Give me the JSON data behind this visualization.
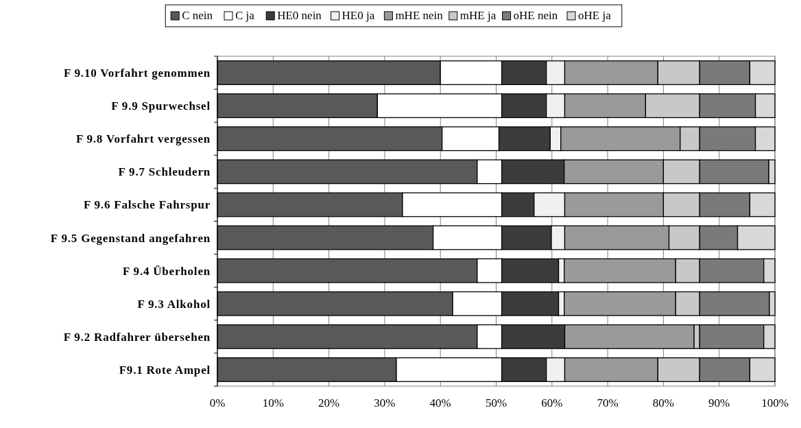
{
  "chart_data": {
    "type": "bar",
    "orientation": "horizontal",
    "stacked": true,
    "categories": [
      "F 9.10 Vorfahrt genommen",
      "F 9.9 Spurwechsel",
      "F 9.8 Vorfahrt vergessen",
      "F 9.7 Schleudern",
      "F 9.6 Falsche Fahrspur",
      "F 9.5 Gegenstand angefahren",
      "F 9.4 Überholen",
      "F 9.3 Alkohol",
      "F 9.2 Radfahrer übersehen",
      "F9.1 Rote Ampel"
    ],
    "series": [
      {
        "name": "C nein",
        "color": "#595959",
        "values": [
          40,
          28.7,
          40.3,
          46.6,
          33.2,
          38.7,
          46.6,
          42.2,
          46.6,
          32.1
        ]
      },
      {
        "name": "C ja",
        "color": "#ffffff",
        "values": [
          11,
          22.3,
          10.2,
          4.4,
          17.8,
          12.3,
          4.4,
          8.8,
          4.4,
          18.9
        ]
      },
      {
        "name": "HE0 nein",
        "color": "#3c3c3c",
        "values": [
          8,
          8,
          9.2,
          11.2,
          5.8,
          8.9,
          10.2,
          10.2,
          11.3,
          8
        ]
      },
      {
        "name": "HE0 ja",
        "color": "#f0f0f0",
        "values": [
          3.3,
          3.3,
          1.9,
          0,
          5.5,
          2.4,
          1,
          1,
          0,
          3.3
        ]
      },
      {
        "name": "mHE nein",
        "color": "#9a9a9a",
        "values": [
          16.7,
          14.5,
          21.4,
          17.8,
          17.7,
          18.7,
          20,
          20,
          23.2,
          16.7
        ]
      },
      {
        "name": "mHE ja",
        "color": "#c8c8c8",
        "values": [
          7.5,
          9.7,
          3.5,
          6.5,
          6.5,
          5.5,
          4.3,
          4.3,
          1,
          7.5
        ]
      },
      {
        "name": "oHE nein",
        "color": "#7a7a7a",
        "values": [
          9,
          10,
          10,
          12.4,
          9,
          6.8,
          11.5,
          12.5,
          11.5,
          9
        ]
      },
      {
        "name": "oHE ja",
        "color": "#d8d8d8",
        "values": [
          4.5,
          3.5,
          3.5,
          1.1,
          4.5,
          6.7,
          2,
          1,
          2,
          4.5
        ]
      }
    ],
    "xlim": [
      0,
      100
    ],
    "xticks": [
      {
        "value": 0,
        "label": "0%"
      },
      {
        "value": 10,
        "label": "10%"
      },
      {
        "value": 20,
        "label": "20%"
      },
      {
        "value": 30,
        "label": "30%"
      },
      {
        "value": 40,
        "label": "40%"
      },
      {
        "value": 50,
        "label": "50%"
      },
      {
        "value": 60,
        "label": "60%"
      },
      {
        "value": 70,
        "label": "70%"
      },
      {
        "value": 80,
        "label": "80%"
      },
      {
        "value": 90,
        "label": "90%"
      },
      {
        "value": 100,
        "label": "100%"
      }
    ],
    "grid": "x",
    "legend": "top"
  }
}
